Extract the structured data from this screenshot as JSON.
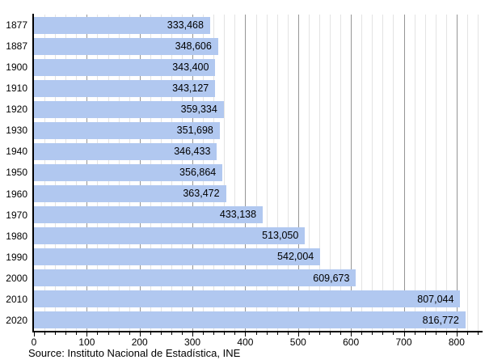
{
  "chart_data": {
    "type": "bar",
    "orientation": "horizontal",
    "title": "",
    "xlabel": "",
    "ylabel": "",
    "categories": [
      "1877",
      "1887",
      "1900",
      "1910",
      "1920",
      "1930",
      "1940",
      "1950",
      "1960",
      "1970",
      "1980",
      "1990",
      "2000",
      "2010",
      "2020"
    ],
    "values": [
      333468,
      348606,
      343400,
      343127,
      359334,
      351698,
      346433,
      356864,
      363472,
      433138,
      513050,
      542004,
      609673,
      807044,
      816772
    ],
    "value_labels": [
      "333,468",
      "348,606",
      "343,400",
      "343,127",
      "359,334",
      "351,698",
      "346,433",
      "356,864",
      "363,472",
      "433,138",
      "513,050",
      "542,004",
      "609,673",
      "807,044",
      "816,772"
    ],
    "x_tick_labels": [
      "0",
      "100",
      "200",
      "300",
      "400",
      "500",
      "600",
      "700",
      "800"
    ],
    "x_tick_values": [
      0,
      100000,
      200000,
      300000,
      400000,
      500000,
      600000,
      700000,
      800000
    ],
    "xlim": [
      0,
      840000
    ],
    "minor_grid_step": 20000,
    "grid": "vertical, minor and major",
    "legend": "none",
    "value_label_position": "inside-bar-right",
    "colors": {
      "bar_fill": "#b1c8f0",
      "minor_grid": "#e3e3e3",
      "major_grid": "#969696",
      "axis": "#000000",
      "text": "#000000"
    }
  },
  "caption": {
    "source": "Source: Instituto Nacional de Estadística, INE"
  }
}
